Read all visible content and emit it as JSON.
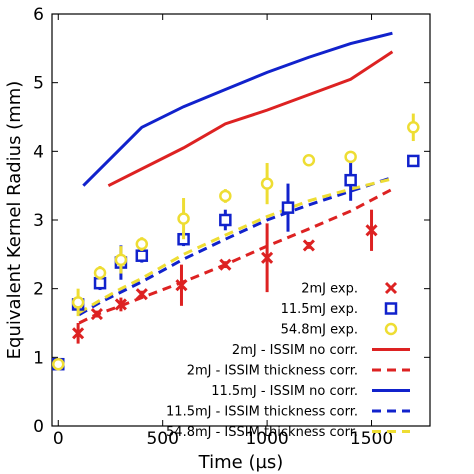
{
  "chart_data": {
    "type": "line",
    "xlabel": "Time (µs)",
    "ylabel": "Equivalent Kernel Radius (mm)",
    "xlim": [
      -30,
      1780
    ],
    "ylim": [
      0,
      6
    ],
    "xticks": [
      0,
      500,
      1000,
      1500
    ],
    "yticks": [
      0,
      1,
      2,
      3,
      4,
      5,
      6
    ],
    "legend_position": "lower-right",
    "grid": false,
    "series": [
      {
        "name": "2mJ exp.",
        "kind": "marker",
        "marker": "x",
        "color": "#dd2222",
        "points": [
          {
            "x": 95,
            "y": 1.35,
            "err": 0.15
          },
          {
            "x": 185,
            "y": 1.63,
            "err": 0.05
          },
          {
            "x": 300,
            "y": 1.77,
            "err": 0.1
          },
          {
            "x": 400,
            "y": 1.92,
            "err": 0.05
          },
          {
            "x": 590,
            "y": 2.05,
            "err": 0.3
          },
          {
            "x": 800,
            "y": 2.35,
            "err": 0.05
          },
          {
            "x": 1000,
            "y": 2.45,
            "err": 0.5
          },
          {
            "x": 1200,
            "y": 2.63,
            "err": 0.05
          },
          {
            "x": 1500,
            "y": 2.85,
            "err": 0.3
          }
        ]
      },
      {
        "name": "11.5mJ exp.",
        "kind": "marker",
        "marker": "square",
        "color": "#1122cc",
        "points": [
          {
            "x": 0,
            "y": 0.9,
            "err": 0.05
          },
          {
            "x": 95,
            "y": 1.77,
            "err": 0.1
          },
          {
            "x": 200,
            "y": 2.08,
            "err": 0.1
          },
          {
            "x": 300,
            "y": 2.38,
            "err": 0.25
          },
          {
            "x": 400,
            "y": 2.48,
            "err": 0.1
          },
          {
            "x": 600,
            "y": 2.72,
            "err": 0.1
          },
          {
            "x": 800,
            "y": 3.0,
            "err": 0.15
          },
          {
            "x": 1100,
            "y": 3.18,
            "err": 0.35
          },
          {
            "x": 1400,
            "y": 3.58,
            "err": 0.3
          },
          {
            "x": 1700,
            "y": 3.86,
            "err": 0.05
          }
        ]
      },
      {
        "name": "54.8mJ exp.",
        "kind": "marker",
        "marker": "circle",
        "color": "#eedd33",
        "points": [
          {
            "x": 0,
            "y": 0.9,
            "err": 0.05
          },
          {
            "x": 95,
            "y": 1.8,
            "err": 0.2
          },
          {
            "x": 200,
            "y": 2.23,
            "err": 0.1
          },
          {
            "x": 300,
            "y": 2.42,
            "err": 0.2
          },
          {
            "x": 400,
            "y": 2.65,
            "err": 0.1
          },
          {
            "x": 600,
            "y": 3.02,
            "err": 0.3
          },
          {
            "x": 800,
            "y": 3.35,
            "err": 0.1
          },
          {
            "x": 1000,
            "y": 3.53,
            "err": 0.3
          },
          {
            "x": 1200,
            "y": 3.87,
            "err": 0.05
          },
          {
            "x": 1400,
            "y": 3.92,
            "err": 0.05
          },
          {
            "x": 1700,
            "y": 4.35,
            "err": 0.2
          }
        ]
      },
      {
        "name": "2mJ - ISSIM no corr.",
        "kind": "line",
        "dashed": false,
        "color": "#dd2222",
        "x": [
          240,
          600,
          800,
          1000,
          1400,
          1600
        ],
        "y": [
          3.5,
          4.05,
          4.4,
          4.6,
          5.05,
          5.45
        ]
      },
      {
        "name": "2mJ - ISSIM thickness corr.",
        "kind": "line",
        "dashed": true,
        "color": "#dd2222",
        "x": [
          100,
          180,
          300,
          400,
          600,
          800,
          1000,
          1200,
          1400,
          1600
        ],
        "y": [
          1.5,
          1.62,
          1.75,
          1.87,
          2.1,
          2.35,
          2.62,
          2.87,
          3.13,
          3.45
        ]
      },
      {
        "name": "11.5mJ - ISSIM no corr.",
        "kind": "line",
        "dashed": false,
        "color": "#1122cc",
        "x": [
          120,
          400,
          600,
          800,
          1000,
          1200,
          1400,
          1600
        ],
        "y": [
          3.5,
          4.35,
          4.65,
          4.9,
          5.15,
          5.37,
          5.57,
          5.72
        ]
      },
      {
        "name": "11.5mJ - ISSIM thickness corr.",
        "kind": "line",
        "dashed": true,
        "color": "#1122cc",
        "x": [
          100,
          200,
          300,
          400,
          600,
          800,
          1000,
          1200,
          1400,
          1600
        ],
        "y": [
          1.62,
          1.8,
          1.95,
          2.1,
          2.43,
          2.72,
          3.0,
          3.22,
          3.42,
          3.62
        ]
      },
      {
        "name": "54.8mJ - ISSIM thickness corr.",
        "kind": "line",
        "dashed": true,
        "color": "#eedd33",
        "x": [
          100,
          200,
          300,
          400,
          600,
          800,
          1000,
          1200,
          1400,
          1600
        ],
        "y": [
          1.65,
          1.83,
          2.0,
          2.15,
          2.5,
          2.78,
          3.05,
          3.28,
          3.45,
          3.6
        ]
      }
    ]
  }
}
